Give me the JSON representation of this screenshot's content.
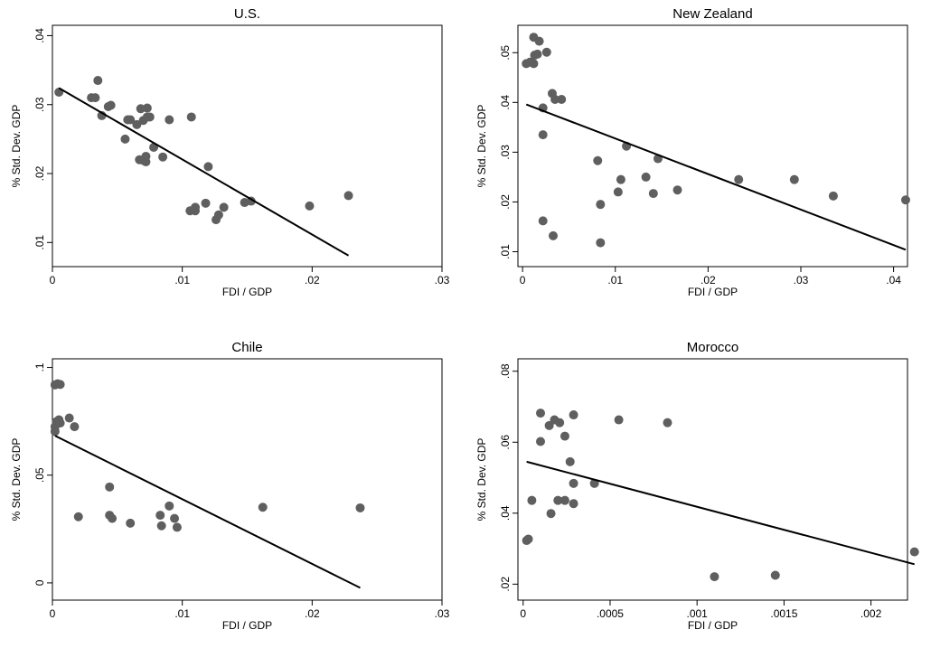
{
  "chart_data": [
    {
      "type": "scatter",
      "title": "U.S.",
      "xlabel": "FDI / GDP",
      "ylabel": "% Std. Dev. GDP",
      "xlim": [
        0,
        0.03
      ],
      "ylim": [
        0.0065,
        0.0415
      ],
      "xticks": [
        0,
        0.01,
        0.02,
        0.03
      ],
      "xtick_labels": [
        "0",
        ".01",
        ".02",
        ".03"
      ],
      "yticks": [
        0.01,
        0.02,
        0.03,
        0.04
      ],
      "ytick_labels": [
        ".01",
        ".02",
        ".03",
        ".04"
      ],
      "grid": false,
      "points": [
        [
          0.0005,
          0.0318
        ],
        [
          0.003,
          0.031
        ],
        [
          0.0033,
          0.031
        ],
        [
          0.0035,
          0.0335
        ],
        [
          0.0038,
          0.0284
        ],
        [
          0.0043,
          0.0297
        ],
        [
          0.0045,
          0.0299
        ],
        [
          0.0056,
          0.025
        ],
        [
          0.0058,
          0.0278
        ],
        [
          0.006,
          0.0278
        ],
        [
          0.0065,
          0.0271
        ],
        [
          0.0067,
          0.022
        ],
        [
          0.0068,
          0.0294
        ],
        [
          0.007,
          0.0277
        ],
        [
          0.007,
          0.0219
        ],
        [
          0.0072,
          0.0217
        ],
        [
          0.0072,
          0.0225
        ],
        [
          0.0073,
          0.0295
        ],
        [
          0.0073,
          0.0282
        ],
        [
          0.0075,
          0.0282
        ],
        [
          0.0078,
          0.0238
        ],
        [
          0.0085,
          0.0224
        ],
        [
          0.009,
          0.0278
        ],
        [
          0.0107,
          0.0282
        ],
        [
          0.0106,
          0.0146
        ],
        [
          0.011,
          0.0146
        ],
        [
          0.011,
          0.0151
        ],
        [
          0.0118,
          0.0157
        ],
        [
          0.012,
          0.021
        ],
        [
          0.0126,
          0.0133
        ],
        [
          0.0128,
          0.014
        ],
        [
          0.0132,
          0.0151
        ],
        [
          0.0148,
          0.0158
        ],
        [
          0.0153,
          0.016
        ],
        [
          0.0198,
          0.0153
        ],
        [
          0.0228,
          0.0168
        ]
      ],
      "fit_line": [
        [
          0.0005,
          0.0324
        ],
        [
          0.0228,
          0.0081
        ]
      ]
    },
    {
      "type": "scatter",
      "title": "New Zealand",
      "xlabel": "FDI / GDP",
      "ylabel": "% Std. Dev. GDP",
      "xlim": [
        -0.0005,
        0.0415
      ],
      "ylim": [
        0.007,
        0.0555
      ],
      "xticks": [
        0,
        0.01,
        0.02,
        0.03,
        0.04
      ],
      "xtick_labels": [
        "0",
        ".01",
        ".02",
        ".03",
        ".04"
      ],
      "yticks": [
        0.01,
        0.02,
        0.03,
        0.04,
        0.05
      ],
      "ytick_labels": [
        ".01",
        ".02",
        ".03",
        ".04",
        ".05"
      ],
      "grid": false,
      "points": [
        [
          0.0004,
          0.0478
        ],
        [
          0.0008,
          0.0481
        ],
        [
          0.0012,
          0.0478
        ],
        [
          0.0012,
          0.0531
        ],
        [
          0.0013,
          0.0495
        ],
        [
          0.0016,
          0.0497
        ],
        [
          0.0018,
          0.0523
        ],
        [
          0.0022,
          0.0389
        ],
        [
          0.0022,
          0.0335
        ],
        [
          0.0022,
          0.0162
        ],
        [
          0.0026,
          0.0501
        ],
        [
          0.0032,
          0.0418
        ],
        [
          0.0033,
          0.0132
        ],
        [
          0.0035,
          0.0406
        ],
        [
          0.0042,
          0.0406
        ],
        [
          0.0081,
          0.0283
        ],
        [
          0.0084,
          0.0195
        ],
        [
          0.0084,
          0.0118
        ],
        [
          0.0103,
          0.022
        ],
        [
          0.0106,
          0.0245
        ],
        [
          0.0112,
          0.0312
        ],
        [
          0.0133,
          0.025
        ],
        [
          0.0141,
          0.0217
        ],
        [
          0.0146,
          0.0287
        ],
        [
          0.0167,
          0.0224
        ],
        [
          0.0233,
          0.0245
        ],
        [
          0.0293,
          0.0245
        ],
        [
          0.0335,
          0.0212
        ],
        [
          0.0413,
          0.0204
        ]
      ],
      "fit_line": [
        [
          0.0004,
          0.0396
        ],
        [
          0.0413,
          0.0104
        ]
      ]
    },
    {
      "type": "scatter",
      "title": "Chile",
      "xlabel": "FDI / GDP",
      "ylabel": "% Std. Dev. GDP",
      "xlim": [
        0,
        0.03
      ],
      "ylim": [
        -0.008,
        0.104
      ],
      "xticks": [
        0,
        0.01,
        0.02,
        0.03
      ],
      "xtick_labels": [
        "0",
        ".01",
        ".02",
        ".03"
      ],
      "yticks": [
        0,
        0.05,
        0.1
      ],
      "ytick_labels": [
        "0",
        ".05",
        ".1"
      ],
      "grid": false,
      "points": [
        [
          0.0002,
          0.0919
        ],
        [
          0.0004,
          0.0924
        ],
        [
          0.0006,
          0.0921
        ],
        [
          0.0002,
          0.0725
        ],
        [
          0.0002,
          0.0703
        ],
        [
          0.0003,
          0.0748
        ],
        [
          0.0005,
          0.0757
        ],
        [
          0.0006,
          0.0742
        ],
        [
          0.0013,
          0.0765
        ],
        [
          0.0017,
          0.0725
        ],
        [
          0.002,
          0.0307
        ],
        [
          0.0044,
          0.0445
        ],
        [
          0.0044,
          0.0314
        ],
        [
          0.0046,
          0.0299
        ],
        [
          0.006,
          0.0277
        ],
        [
          0.0083,
          0.0314
        ],
        [
          0.0084,
          0.0265
        ],
        [
          0.009,
          0.0357
        ],
        [
          0.0094,
          0.0299
        ],
        [
          0.0096,
          0.0258
        ],
        [
          0.0162,
          0.0351
        ],
        [
          0.0237,
          0.0348
        ]
      ],
      "fit_line": [
        [
          0.0002,
          0.0683
        ],
        [
          0.0237,
          -0.0023
        ]
      ]
    },
    {
      "type": "scatter",
      "title": "Morocco",
      "xlabel": "FDI / GDP",
      "ylabel": "% Std. Dev. GDP",
      "xlim": [
        -3e-05,
        0.00221
      ],
      "ylim": [
        0.0155,
        0.0835
      ],
      "xticks": [
        0,
        0.0005,
        0.001,
        0.0015,
        0.002
      ],
      "xtick_labels": [
        "0",
        ".0005",
        ".001",
        ".0015",
        ".002"
      ],
      "yticks": [
        0.02,
        0.04,
        0.06,
        0.08
      ],
      "ytick_labels": [
        ".02",
        ".04",
        ".06",
        ".08"
      ],
      "grid": false,
      "points": [
        [
          2e-05,
          0.0323
        ],
        [
          3e-05,
          0.0327
        ],
        [
          5e-05,
          0.0436
        ],
        [
          0.0001,
          0.0602
        ],
        [
          0.0001,
          0.0682
        ],
        [
          0.00015,
          0.0647
        ],
        [
          0.00016,
          0.0399
        ],
        [
          0.00018,
          0.0663
        ],
        [
          0.0002,
          0.0436
        ],
        [
          0.00021,
          0.0655
        ],
        [
          0.00024,
          0.0436
        ],
        [
          0.00024,
          0.0617
        ],
        [
          0.00027,
          0.0545
        ],
        [
          0.00029,
          0.0484
        ],
        [
          0.00029,
          0.0427
        ],
        [
          0.00029,
          0.0677
        ],
        [
          0.00041,
          0.0484
        ],
        [
          0.00055,
          0.0663
        ],
        [
          0.00083,
          0.0655
        ],
        [
          0.0011,
          0.0221
        ],
        [
          0.00145,
          0.0225
        ],
        [
          0.00225,
          0.0291
        ]
      ],
      "fit_line": [
        [
          2e-05,
          0.0545
        ],
        [
          0.00225,
          0.0256
        ]
      ]
    }
  ]
}
